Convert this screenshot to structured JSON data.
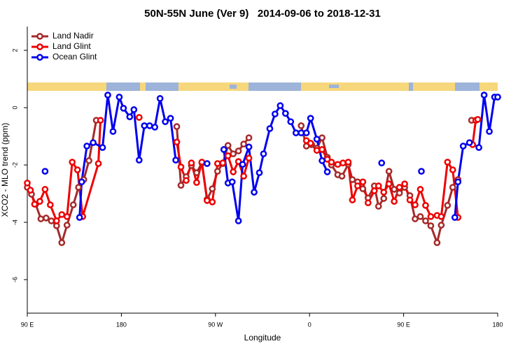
{
  "chart_data": {
    "type": "line",
    "title": "50N-55N June (Ver 9)   2014-09-06 to 2018-12-31",
    "x_label": "Longitude",
    "y_label": "XCO2 - MLO trend (ppm)",
    "xlim": [
      90,
      540
    ],
    "xticks": [
      {
        "value": 90,
        "label": "90 E"
      },
      {
        "value": 180,
        "label": "180"
      },
      {
        "value": 270,
        "label": "90 W"
      },
      {
        "value": 360,
        "label": "0"
      },
      {
        "value": 450,
        "label": "90 E"
      },
      {
        "value": 540,
        "label": "180"
      }
    ],
    "ylim": [
      -7.17,
      2.83
    ],
    "yticks": [
      -6,
      -4,
      -2,
      0,
      2
    ],
    "legend": "top-left",
    "series": [
      {
        "name": "Land Nadir",
        "color": "#a52a2a",
        "x": [
          90,
          94,
          98,
          103,
          108,
          113,
          118,
          123,
          128,
          134,
          139,
          144,
          149,
          156,
          null,
          233,
          237,
          242,
          247,
          252,
          257,
          262,
          267,
          272,
          277,
          282,
          287,
          292,
          297,
          302,
          null,
          352,
          357,
          362,
          367,
          372,
          377,
          381,
          387,
          391,
          397,
          401,
          406,
          411,
          416,
          422,
          426,
          431,
          436,
          441,
          446,
          451,
          456,
          461,
          466,
          471,
          476,
          482,
          486,
          492,
          497,
          502,
          null,
          515
        ],
        "values": [
          -2.78,
          -3.02,
          -3.37,
          -3.88,
          -3.85,
          -3.95,
          -4.12,
          -4.71,
          -4.1,
          -3.39,
          -2.78,
          -2.51,
          -1.85,
          -0.44,
          null,
          -0.66,
          -2.71,
          -2.41,
          -2.02,
          -2.27,
          -1.93,
          -3.2,
          -2.83,
          -2.22,
          -1.95,
          -1.32,
          -1.61,
          -1.51,
          -1.27,
          -1.05,
          null,
          -0.63,
          -1.34,
          -1.29,
          -1.41,
          -1.05,
          -1.73,
          -2.0,
          -2.34,
          -2.39,
          -1.98,
          -2.51,
          -2.59,
          -2.83,
          -3.15,
          -2.73,
          -3.44,
          -3.17,
          -2.22,
          -2.85,
          -2.98,
          -2.78,
          -3.07,
          -3.88,
          -3.8,
          -3.95,
          -4.12,
          -4.71,
          -4.1,
          -3.41,
          -2.78,
          -2.51,
          null,
          -0.44
        ]
      },
      {
        "name": "Land Glint",
        "color": "#ee0000",
        "x": [
          90,
          93,
          97,
          102,
          107,
          112,
          118,
          123,
          128,
          133,
          138,
          143,
          158,
          160,
          null,
          197,
          null,
          233,
          237,
          242,
          247,
          252,
          257,
          262,
          267,
          272,
          277,
          282,
          287,
          292,
          297,
          302,
          null,
          357,
          361,
          367,
          372,
          377,
          381,
          387,
          392,
          397,
          401,
          406,
          411,
          416,
          422,
          426,
          431,
          436,
          441,
          446,
          451,
          456,
          461,
          466,
          471,
          476,
          482,
          486,
          492,
          497,
          502,
          null,
          516,
          519,
          521
        ],
        "values": [
          -2.63,
          -2.88,
          -3.37,
          -3.27,
          -2.85,
          -3.39,
          -3.95,
          -3.73,
          -3.8,
          -1.9,
          -2.17,
          -3.8,
          -1.95,
          -0.44,
          null,
          -0.34,
          null,
          -1.2,
          -2.07,
          -2.54,
          -1.93,
          -2.61,
          -1.9,
          -3.24,
          -3.29,
          -1.95,
          -1.93,
          -1.68,
          -2.24,
          -1.88,
          -2.39,
          -1.76,
          null,
          -1.15,
          -1.24,
          -1.49,
          -1.46,
          -1.8,
          -1.9,
          -1.98,
          -1.93,
          -1.9,
          -3.22,
          -2.73,
          -2.59,
          -3.32,
          -2.9,
          -2.73,
          -2.95,
          -2.66,
          -3.27,
          -2.78,
          -2.66,
          -3.22,
          -3.39,
          -2.85,
          -3.41,
          -3.8,
          -3.76,
          -3.8,
          -1.9,
          -2.17,
          -3.83,
          null,
          -1.29,
          -0.44,
          -0.41
        ]
      },
      {
        "name": "Ocean Glint",
        "color": "#0000ee",
        "x": [
          107,
          null,
          140,
          142,
          147,
          153,
          162,
          167,
          172,
          178,
          182,
          188,
          192,
          197,
          202,
          207,
          212,
          217,
          222,
          227,
          232,
          null,
          262,
          null,
          278,
          282,
          286,
          292,
          296,
          302,
          307,
          312,
          316,
          322,
          327,
          332,
          337,
          342,
          347,
          352,
          357,
          361,
          367,
          372,
          377,
          null,
          429,
          null,
          467,
          null,
          499,
          502,
          507,
          513,
          522,
          527,
          532,
          537,
          540
        ],
        "values": [
          -2.22,
          null,
          -3.83,
          -2.59,
          -1.34,
          -1.22,
          -1.39,
          0.44,
          -0.83,
          0.37,
          -0.02,
          -0.32,
          -0.07,
          -1.83,
          -0.63,
          -0.63,
          -0.68,
          0.32,
          -0.49,
          -0.37,
          -1.83,
          null,
          -1.95,
          null,
          -1.46,
          -2.63,
          -2.59,
          -3.95,
          -1.98,
          -1.37,
          -2.95,
          -2.27,
          -1.61,
          -0.73,
          -0.22,
          0.07,
          -0.2,
          -0.49,
          -0.88,
          -0.88,
          -0.88,
          -0.37,
          -1.1,
          -1.85,
          -2.24,
          null,
          -1.93,
          null,
          -2.22,
          null,
          -3.83,
          -2.59,
          -1.34,
          -1.22,
          -1.39,
          0.44,
          -0.83,
          0.37,
          0.37
        ]
      }
    ]
  }
}
